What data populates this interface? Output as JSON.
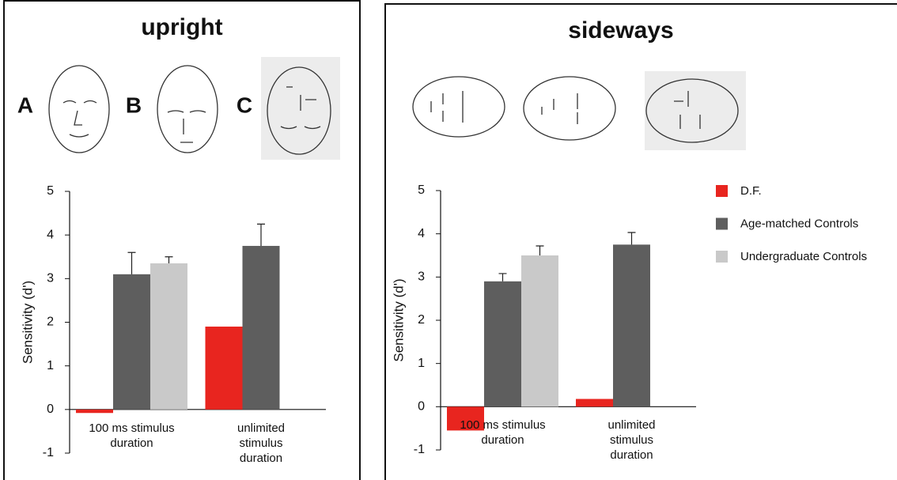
{
  "chart_data": [
    {
      "type": "bar",
      "title": "upright",
      "annotations": [
        "A",
        "B",
        "C"
      ],
      "y_label": "Sensitivity (d')",
      "categories": [
        "100 ms stimulus duration",
        "unlimited stimulus duration"
      ],
      "series": [
        {
          "color": "#e8251f",
          "values": [
            -0.08,
            1.9
          ]
        },
        {
          "color": "#5e5e5e",
          "values": [
            3.1,
            3.75
          ],
          "errors": [
            0.5,
            0.5
          ]
        },
        {
          "color": "#c9c9c9",
          "values": [
            3.35,
            null
          ],
          "errors": [
            0.15,
            null
          ]
        }
      ],
      "ylim": [
        -1,
        5
      ],
      "yticks": [
        -1,
        0,
        1,
        2,
        3,
        4,
        5
      ]
    },
    {
      "type": "bar",
      "title": "sideways",
      "y_label": "Sensitivity (d')",
      "categories": [
        "100 ms stimulus duration",
        "unlimited stimulus duration"
      ],
      "series": [
        {
          "name": "D.F.",
          "color": "#e8251f",
          "values": [
            -0.55,
            0.18
          ]
        },
        {
          "name": "Age-matched Controls",
          "color": "#5e5e5e",
          "values": [
            2.9,
            3.75
          ],
          "errors": [
            0.18,
            0.28
          ]
        },
        {
          "name": "Undergraduate Controls",
          "color": "#c9c9c9",
          "values": [
            3.5,
            null
          ],
          "errors": [
            0.22,
            null
          ]
        }
      ],
      "ylim": [
        -1,
        5
      ],
      "yticks": [
        -1,
        0,
        1,
        2,
        3,
        4,
        5
      ],
      "legend": "right"
    }
  ]
}
